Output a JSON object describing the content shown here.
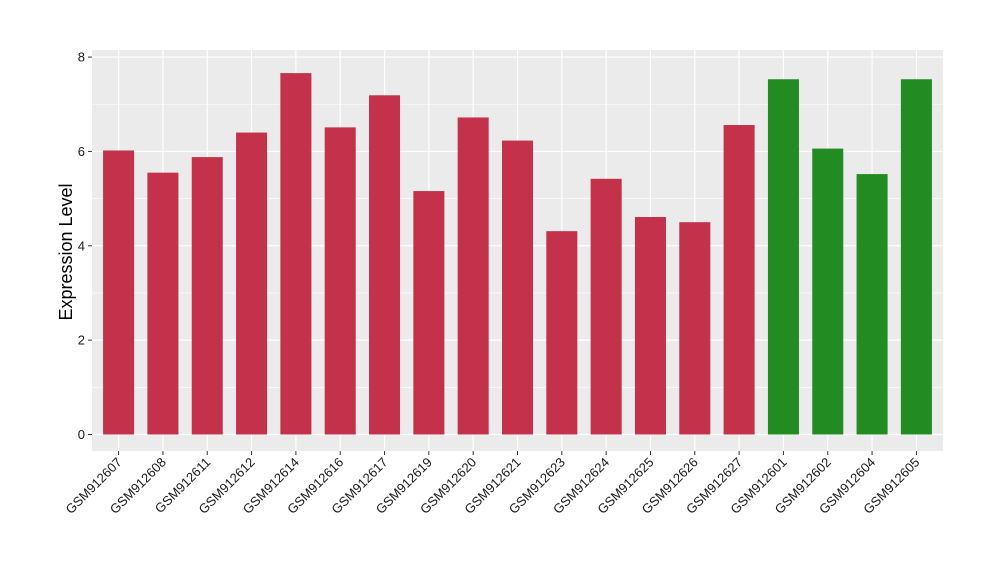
{
  "chart_data": {
    "type": "bar",
    "title": "",
    "xlabel": "",
    "ylabel": "Expression Level",
    "ylim": [
      -0.35,
      8.15
    ],
    "yticks": [
      0,
      2,
      4,
      6,
      8
    ],
    "grid": true,
    "categories": [
      "GSM912607",
      "GSM912608",
      "GSM912611",
      "GSM912612",
      "GSM912614",
      "GSM912616",
      "GSM912617",
      "GSM912619",
      "GSM912620",
      "GSM912621",
      "GSM912623",
      "GSM912624",
      "GSM912625",
      "GSM912626",
      "GSM912627",
      "GSM912601",
      "GSM912602",
      "GSM912604",
      "GSM912605"
    ],
    "values": [
      6.02,
      5.55,
      5.88,
      6.4,
      7.66,
      6.51,
      7.19,
      5.16,
      6.72,
      6.23,
      4.31,
      5.42,
      4.61,
      4.5,
      6.56,
      7.53,
      6.06,
      5.52,
      7.53
    ],
    "bar_colors": [
      "#c4314b",
      "#c4314b",
      "#c4314b",
      "#c4314b",
      "#c4314b",
      "#c4314b",
      "#c4314b",
      "#c4314b",
      "#c4314b",
      "#c4314b",
      "#c4314b",
      "#c4314b",
      "#c4314b",
      "#c4314b",
      "#c4314b",
      "#228b22",
      "#228b22",
      "#228b22",
      "#228b22"
    ],
    "panel_color": "#ebebeb",
    "grid_color": "#ffffff"
  }
}
